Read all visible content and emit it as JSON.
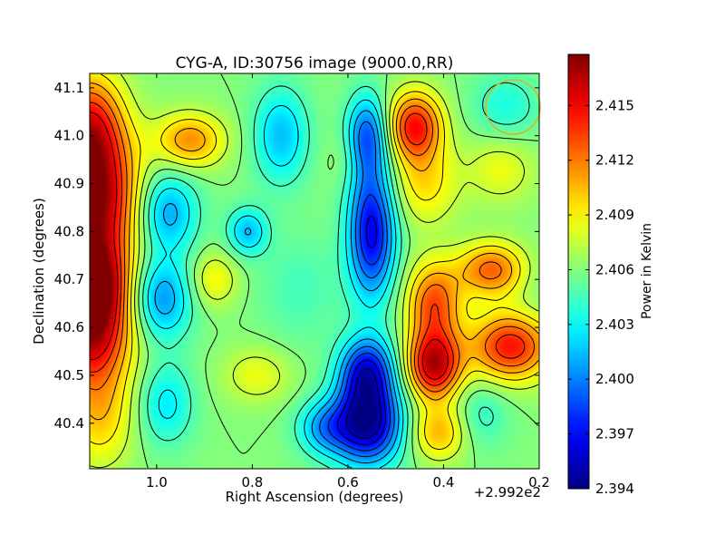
{
  "chart_data": {
    "type": "heatmap",
    "title": "CYG-A, ID:30756 image (9000.0,RR)",
    "xlabel": "Right Ascension (degrees)",
    "ylabel": "Declination (degrees)",
    "x_offset_label": "+2.992e2",
    "x_ticks": [
      1.0,
      0.8,
      0.6,
      0.4,
      0.2
    ],
    "x_tick_labels": [
      "1.0",
      "0.8",
      "0.6",
      "0.4",
      "0.2"
    ],
    "y_ticks": [
      40.4,
      40.5,
      40.6,
      40.7,
      40.8,
      40.9,
      41.0,
      41.1
    ],
    "y_tick_labels": [
      "40.4",
      "40.5",
      "40.6",
      "40.7",
      "40.8",
      "40.9",
      "41.0",
      "41.1"
    ],
    "xlim": [
      1.14,
      0.2
    ],
    "ylim": [
      40.305,
      41.13
    ],
    "colorbar": {
      "label": "Power in Kelvin",
      "colormap": "jet",
      "range": [
        2.394,
        2.4178
      ],
      "ticks": [
        2.394,
        2.397,
        2.4,
        2.403,
        2.406,
        2.409,
        2.412,
        2.415
      ],
      "tick_labels": [
        "2.394",
        "2.397",
        "2.400",
        "2.403",
        "2.406",
        "2.409",
        "2.412",
        "2.415"
      ]
    },
    "blobs": [
      {
        "ra": 1.14,
        "dec": 40.86,
        "value": 2.4178,
        "sigma_ra": 0.07,
        "sigma_dec": 0.1
      },
      {
        "ra": 1.14,
        "dec": 40.6,
        "value": 2.4165,
        "sigma_ra": 0.06,
        "sigma_dec": 0.08
      },
      {
        "ra": 1.14,
        "dec": 41.02,
        "value": 2.4135,
        "sigma_ra": 0.05,
        "sigma_dec": 0.08
      },
      {
        "ra": 1.14,
        "dec": 40.7,
        "value": 2.4145,
        "sigma_ra": 0.05,
        "sigma_dec": 0.06
      },
      {
        "ra": 1.12,
        "dec": 40.42,
        "value": 2.41,
        "sigma_ra": 0.05,
        "sigma_dec": 0.08
      },
      {
        "ra": 0.98,
        "dec": 40.84,
        "value": 2.4005,
        "sigma_ra": 0.045,
        "sigma_dec": 0.06
      },
      {
        "ra": 0.99,
        "dec": 40.66,
        "value": 2.4003,
        "sigma_ra": 0.045,
        "sigma_dec": 0.06
      },
      {
        "ra": 0.98,
        "dec": 40.44,
        "value": 2.4025,
        "sigma_ra": 0.04,
        "sigma_dec": 0.06
      },
      {
        "ra": 0.93,
        "dec": 40.99,
        "value": 2.4115,
        "sigma_ra": 0.05,
        "sigma_dec": 0.04
      },
      {
        "ra": 0.88,
        "dec": 40.7,
        "value": 2.409,
        "sigma_ra": 0.035,
        "sigma_dec": 0.04
      },
      {
        "ra": 0.81,
        "dec": 40.8,
        "value": 2.4015,
        "sigma_ra": 0.03,
        "sigma_dec": 0.035
      },
      {
        "ra": 0.79,
        "dec": 40.5,
        "value": 2.4085,
        "sigma_ra": 0.05,
        "sigma_dec": 0.04
      },
      {
        "ra": 0.74,
        "dec": 41.0,
        "value": 2.4015,
        "sigma_ra": 0.04,
        "sigma_dec": 0.07
      },
      {
        "ra": 0.7,
        "dec": 40.68,
        "value": 2.4045,
        "sigma_ra": 0.06,
        "sigma_dec": 0.08
      },
      {
        "ra": 0.6,
        "dec": 40.95,
        "value": 2.407,
        "sigma_ra": 0.03,
        "sigma_dec": 0.04
      },
      {
        "ra": 0.56,
        "dec": 40.4,
        "value": 2.3945,
        "sigma_ra": 0.05,
        "sigma_dec": 0.06
      },
      {
        "ra": 0.56,
        "dec": 40.51,
        "value": 2.3975,
        "sigma_ra": 0.04,
        "sigma_dec": 0.05
      },
      {
        "ra": 0.55,
        "dec": 40.8,
        "value": 2.3965,
        "sigma_ra": 0.035,
        "sigma_dec": 0.1
      },
      {
        "ra": 0.56,
        "dec": 41.0,
        "value": 2.3995,
        "sigma_ra": 0.03,
        "sigma_dec": 0.06
      },
      {
        "ra": 0.65,
        "dec": 40.39,
        "value": 2.4015,
        "sigma_ra": 0.04,
        "sigma_dec": 0.04
      },
      {
        "ra": 0.46,
        "dec": 41.02,
        "value": 2.4145,
        "sigma_ra": 0.04,
        "sigma_dec": 0.05
      },
      {
        "ra": 0.44,
        "dec": 40.9,
        "value": 2.4095,
        "sigma_ra": 0.05,
        "sigma_dec": 0.06
      },
      {
        "ra": 0.42,
        "dec": 40.52,
        "value": 2.4162,
        "sigma_ra": 0.04,
        "sigma_dec": 0.05
      },
      {
        "ra": 0.42,
        "dec": 40.65,
        "value": 2.413,
        "sigma_ra": 0.04,
        "sigma_dec": 0.06
      },
      {
        "ra": 0.41,
        "dec": 40.38,
        "value": 2.4105,
        "sigma_ra": 0.04,
        "sigma_dec": 0.04
      },
      {
        "ra": 0.26,
        "dec": 40.56,
        "value": 2.4145,
        "sigma_ra": 0.06,
        "sigma_dec": 0.05
      },
      {
        "ra": 0.3,
        "dec": 40.72,
        "value": 2.4125,
        "sigma_ra": 0.05,
        "sigma_dec": 0.04
      },
      {
        "ra": 0.32,
        "dec": 40.42,
        "value": 2.404,
        "sigma_ra": 0.04,
        "sigma_dec": 0.05
      },
      {
        "ra": 0.28,
        "dec": 40.93,
        "value": 2.4085,
        "sigma_ra": 0.05,
        "sigma_dec": 0.05
      },
      {
        "ra": 0.27,
        "dec": 41.06,
        "value": 2.4035,
        "sigma_ra": 0.05,
        "sigma_dec": 0.05
      },
      {
        "ra": 0.21,
        "dec": 40.67,
        "value": 2.4055,
        "sigma_ra": 0.03,
        "sigma_dec": 0.05
      }
    ],
    "background_value": 2.406,
    "contour_levels": [
      2.3955,
      2.397,
      2.3985,
      2.4,
      2.4015,
      2.403,
      2.4045,
      2.406,
      2.4075,
      2.409,
      2.4105,
      2.412,
      2.4135,
      2.415
    ],
    "beam_marker": {
      "ra": 0.255,
      "dec": 41.06,
      "color": "#e0b020"
    },
    "grid": false
  }
}
